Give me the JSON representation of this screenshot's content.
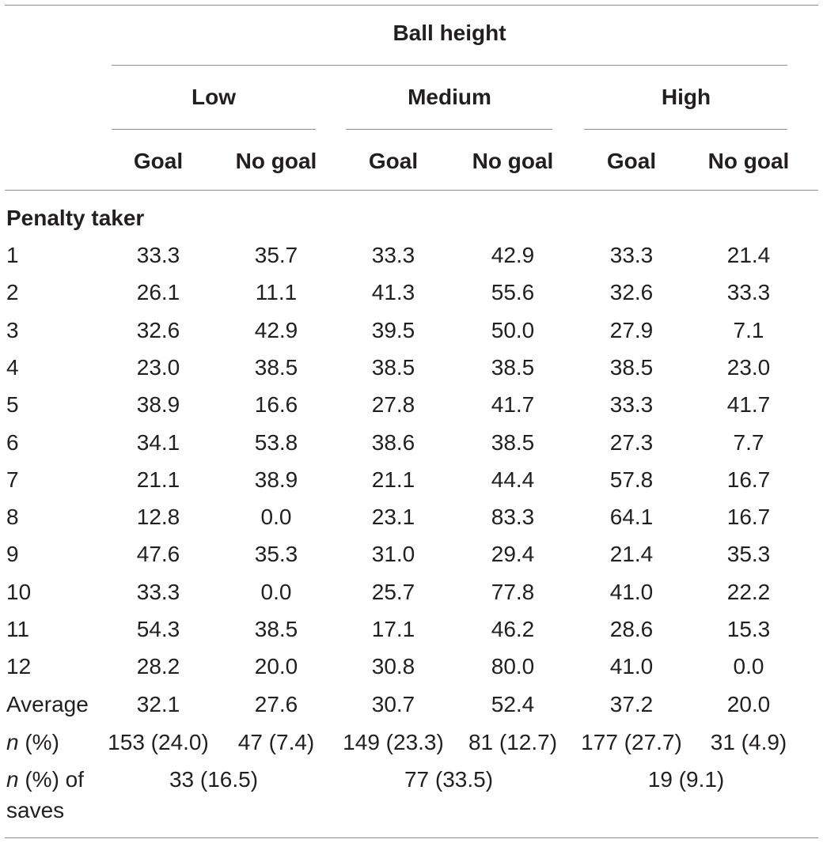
{
  "header": {
    "ball_height": "Ball height",
    "groups": [
      "Low",
      "Medium",
      "High"
    ],
    "subcols": [
      "Goal",
      "No goal",
      "Goal",
      "No goal",
      "Goal",
      "No goal"
    ]
  },
  "section_label": "Penalty taker",
  "rows": [
    {
      "label": "1",
      "values": [
        "33.3",
        "35.7",
        "33.3",
        "42.9",
        "33.3",
        "21.4"
      ]
    },
    {
      "label": "2",
      "values": [
        "26.1",
        "11.1",
        "41.3",
        "55.6",
        "32.6",
        "33.3"
      ]
    },
    {
      "label": "3",
      "values": [
        "32.6",
        "42.9",
        "39.5",
        "50.0",
        "27.9",
        "7.1"
      ]
    },
    {
      "label": "4",
      "values": [
        "23.0",
        "38.5",
        "38.5",
        "38.5",
        "38.5",
        "23.0"
      ]
    },
    {
      "label": "5",
      "values": [
        "38.9",
        "16.6",
        "27.8",
        "41.7",
        "33.3",
        "41.7"
      ]
    },
    {
      "label": "6",
      "values": [
        "34.1",
        "53.8",
        "38.6",
        "38.5",
        "27.3",
        "7.7"
      ]
    },
    {
      "label": "7",
      "values": [
        "21.1",
        "38.9",
        "21.1",
        "44.4",
        "57.8",
        "16.7"
      ]
    },
    {
      "label": "8",
      "values": [
        "12.8",
        "0.0",
        "23.1",
        "83.3",
        "64.1",
        "16.7"
      ]
    },
    {
      "label": "9",
      "values": [
        "47.6",
        "35.3",
        "31.0",
        "29.4",
        "21.4",
        "35.3"
      ]
    },
    {
      "label": "10",
      "values": [
        "33.3",
        "0.0",
        "25.7",
        "77.8",
        "41.0",
        "22.2"
      ]
    },
    {
      "label": "11",
      "values": [
        "54.3",
        "38.5",
        "17.1",
        "46.2",
        "28.6",
        "15.3"
      ]
    },
    {
      "label": "12",
      "values": [
        "28.2",
        "20.0",
        "30.8",
        "80.0",
        "41.0",
        "0.0"
      ]
    },
    {
      "label": "Average",
      "values": [
        "32.1",
        "27.6",
        "30.7",
        "52.4",
        "37.2",
        "20.0"
      ]
    }
  ],
  "n_row": {
    "label_n": "n",
    "label_rest": " (%)",
    "values": [
      "153 (24.0)",
      "47 (7.4)",
      "149 (23.3)",
      "81 (12.7)",
      "177 (27.7)",
      "31 (4.9)"
    ]
  },
  "saves_row": {
    "label_n": "n",
    "label_rest": " (%) of",
    "label_line2": "saves",
    "values": [
      "33 (16.5)",
      "77 (33.5)",
      "19 (9.1)"
    ]
  }
}
